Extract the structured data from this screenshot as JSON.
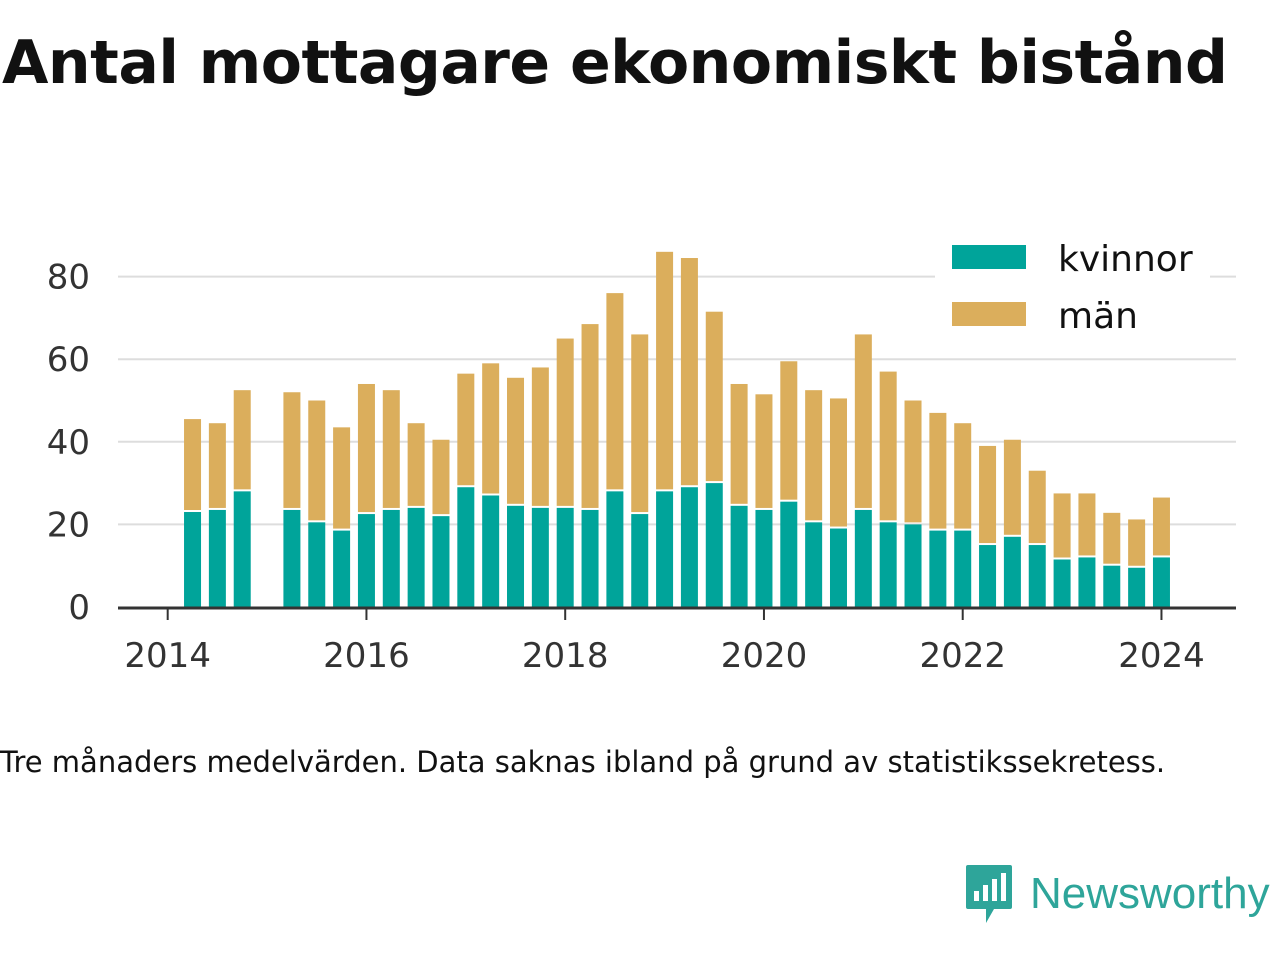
{
  "title": "Antal mottagare ekonomiskt bistånd",
  "note": "Tre månaders medelvärden. Data saknas ibland på grund av statistikssekretess.",
  "brand": {
    "name": "Newsworthy",
    "logo_icon": "bar-chart-speech-bubble-icon"
  },
  "colors": {
    "kvinnor": "#00a49a",
    "man": "#dbae5c",
    "grid": "#dddddd",
    "axis": "#333333"
  },
  "chart_data": {
    "type": "bar",
    "stacked": true,
    "title": "",
    "xlabel": "",
    "ylabel": "",
    "ylim": [
      0,
      90
    ],
    "yticks": [
      0,
      20,
      40,
      60,
      80
    ],
    "xticks": [
      2014,
      2016,
      2018,
      2020,
      2022,
      2024
    ],
    "xlim": [
      2013.5,
      2024.75
    ],
    "grid": true,
    "legend_position": "top-right",
    "x": [
      2014.25,
      2014.5,
      2014.75,
      2015.25,
      2015.5,
      2015.75,
      2016.0,
      2016.25,
      2016.5,
      2016.75,
      2017.0,
      2017.25,
      2017.5,
      2017.75,
      2018.0,
      2018.25,
      2018.5,
      2018.75,
      2019.0,
      2019.25,
      2019.5,
      2019.75,
      2020.0,
      2020.25,
      2020.5,
      2020.75,
      2021.0,
      2021.25,
      2021.5,
      2021.75,
      2022.0,
      2022.25,
      2022.5,
      2022.75,
      2023.0,
      2023.25,
      2023.5,
      2023.75,
      2024.0
    ],
    "series": [
      {
        "name": "kvinnor",
        "values": [
          23,
          23.5,
          28,
          23.5,
          20.5,
          18.5,
          22.5,
          23.5,
          24,
          22,
          29,
          27,
          24.5,
          24,
          24,
          23.5,
          28,
          22.5,
          28,
          29,
          30,
          24.5,
          23.5,
          25.5,
          20.5,
          19,
          23.5,
          20.5,
          20,
          18.5,
          18.5,
          15,
          17,
          15,
          11.5,
          12,
          10,
          9.5,
          12
        ]
      },
      {
        "name": "män",
        "values": [
          22.5,
          21,
          24.5,
          28.5,
          29.5,
          25,
          31.5,
          29,
          20.5,
          18.5,
          27.5,
          32,
          31,
          34,
          41,
          45,
          48,
          43.5,
          58,
          55.5,
          41.5,
          29.5,
          28,
          34,
          32,
          31.5,
          42.5,
          36.5,
          30,
          28.5,
          26,
          24,
          23.5,
          18,
          16,
          15.5,
          12.8,
          11.7,
          14.5
        ]
      }
    ]
  }
}
